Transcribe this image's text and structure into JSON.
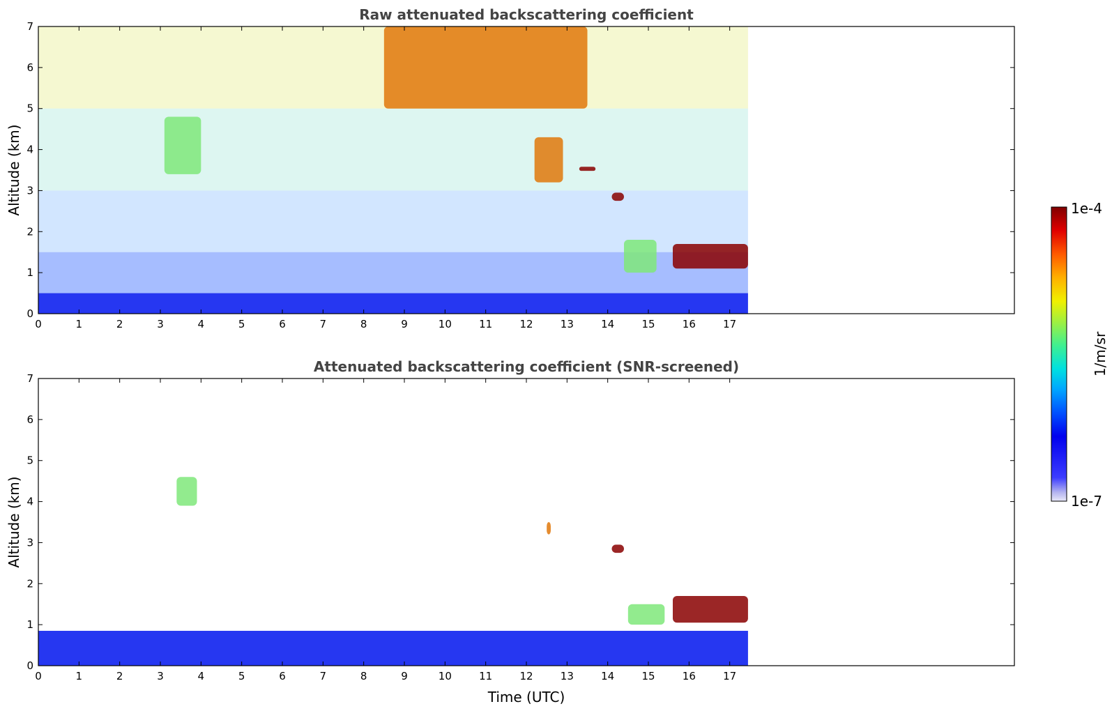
{
  "chart_data": [
    {
      "type": "heatmap",
      "title": "Raw attenuated backscattering coefficient",
      "xlabel": "",
      "ylabel": "Altitude (km)",
      "xlim": [
        0,
        24
      ],
      "ylim": [
        0,
        7
      ],
      "x_ticks": [
        0,
        1,
        2,
        3,
        4,
        5,
        6,
        7,
        8,
        9,
        10,
        11,
        12,
        13,
        14,
        15,
        16,
        17
      ],
      "y_ticks": [
        0,
        1,
        2,
        3,
        4,
        5,
        6,
        7
      ],
      "data_end_time": 17.45,
      "features": [
        {
          "feature": "boundary layer aerosol",
          "t_start": 0,
          "t_end": 17.45,
          "alt_top": 0.5,
          "level": "low"
        },
        {
          "feature": "elevated aerosol plume",
          "t_start": 3.1,
          "t_end": 4.0,
          "alt_bottom": 3.4,
          "alt_top": 4.8,
          "level": "medium"
        },
        {
          "feature": "upper-level layer",
          "t_start": 8.5,
          "t_end": 13.5,
          "alt_bottom": 5.0,
          "alt_top": 7.0,
          "level": "high"
        },
        {
          "feature": "mid-level aerosol",
          "t_start": 12.2,
          "t_end": 12.9,
          "alt_bottom": 3.2,
          "alt_top": 4.3,
          "level": "high"
        },
        {
          "feature": "cloud",
          "t_start": 13.3,
          "t_end": 13.7,
          "alt_bottom": 3.48,
          "alt_top": 3.58,
          "level": "very-high"
        },
        {
          "feature": "cloud",
          "t_start": 14.1,
          "t_end": 14.4,
          "alt_bottom": 2.75,
          "alt_top": 2.95,
          "level": "very-high"
        },
        {
          "feature": "aerosol",
          "t_start": 14.4,
          "t_end": 15.2,
          "alt_bottom": 1.0,
          "alt_top": 1.8,
          "level": "medium"
        },
        {
          "feature": "low cloud layer",
          "t_start": 15.6,
          "t_end": 17.45,
          "alt_bottom": 1.1,
          "alt_top": 1.7,
          "level": "very-high"
        }
      ]
    },
    {
      "type": "heatmap",
      "title": "Attenuated backscattering coefficient (SNR-screened)",
      "xlabel": "Time (UTC)",
      "ylabel": "Altitude (km)",
      "xlim": [
        0,
        24
      ],
      "ylim": [
        0,
        7
      ],
      "x_ticks": [
        0,
        1,
        2,
        3,
        4,
        5,
        6,
        7,
        8,
        9,
        10,
        11,
        12,
        13,
        14,
        15,
        16,
        17
      ],
      "y_ticks": [
        0,
        1,
        2,
        3,
        4,
        5,
        6,
        7
      ],
      "data_end_time": 17.45,
      "features": [
        {
          "feature": "boundary layer aerosol",
          "t_start": 0,
          "t_end": 17.45,
          "alt_top": 0.85,
          "level": "low"
        },
        {
          "feature": "aerosol",
          "t_start": 3.4,
          "t_end": 3.9,
          "alt_bottom": 3.9,
          "alt_top": 4.6,
          "level": "medium"
        },
        {
          "feature": "aerosol",
          "t_start": 12.5,
          "t_end": 12.6,
          "alt_bottom": 3.2,
          "alt_top": 3.5,
          "level": "high"
        },
        {
          "feature": "cloud",
          "t_start": 14.1,
          "t_end": 14.4,
          "alt_bottom": 2.75,
          "alt_top": 2.95,
          "level": "very-high"
        },
        {
          "feature": "aerosol",
          "t_start": 14.5,
          "t_end": 15.4,
          "alt_bottom": 1.0,
          "alt_top": 1.5,
          "level": "medium"
        },
        {
          "feature": "low cloud layer",
          "t_start": 15.6,
          "t_end": 17.45,
          "alt_bottom": 1.05,
          "alt_top": 1.7,
          "level": "very-high"
        }
      ]
    }
  ],
  "colorbar": {
    "label": "1/m/sr",
    "max_label": "1e-4",
    "min_label": "1e-7",
    "colormap": "jet"
  }
}
